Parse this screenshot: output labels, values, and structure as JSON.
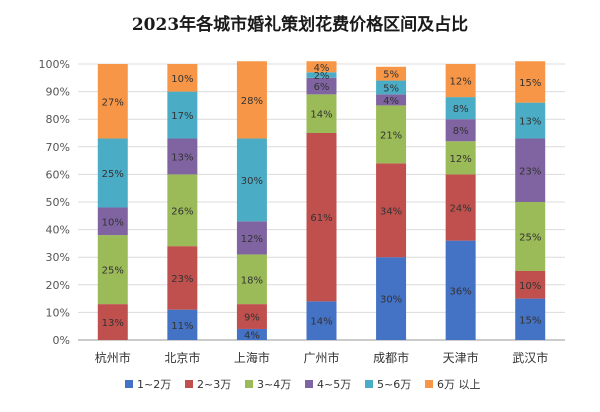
{
  "chart_data": {
    "type": "bar",
    "stacked": true,
    "title": "2023年各城市婚礼策划花费价格区间及占比",
    "xlabel": "",
    "ylabel": "",
    "ylim": [
      0,
      100
    ],
    "y_ticks": [
      "0%",
      "10%",
      "20%",
      "30%",
      "40%",
      "50%",
      "60%",
      "70%",
      "80%",
      "90%",
      "100%"
    ],
    "categories": [
      "杭州市",
      "北京市",
      "上海市",
      "广州市",
      "成都市",
      "天津市",
      "武汉市"
    ],
    "series": [
      {
        "name": "1~2万",
        "color": "#4472c4",
        "values": [
          0,
          11,
          4,
          14,
          30,
          36,
          15
        ],
        "labels": [
          "",
          "11%",
          "4%",
          "14%",
          "30%",
          "36%",
          "15%"
        ]
      },
      {
        "name": "2~3万",
        "color": "#c0504d",
        "values": [
          13,
          23,
          9,
          61,
          34,
          24,
          10
        ],
        "labels": [
          "13%",
          "23%",
          "9%",
          "61%",
          "34%",
          "24%",
          "10%"
        ]
      },
      {
        "name": "3~4万",
        "color": "#9bbb59",
        "values": [
          25,
          26,
          18,
          14,
          21,
          12,
          25
        ],
        "labels": [
          "25%",
          "26%",
          "18%",
          "14%",
          "21%",
          "12%",
          "25%"
        ]
      },
      {
        "name": "4~5万",
        "color": "#8064a2",
        "values": [
          10,
          13,
          12,
          6,
          4,
          8,
          23
        ],
        "labels": [
          "10%",
          "13%",
          "12%",
          "6%",
          "4%",
          "8%",
          "23%"
        ]
      },
      {
        "name": "5~6万",
        "color": "#4bacc6",
        "values": [
          25,
          17,
          30,
          2,
          5,
          8,
          13
        ],
        "labels": [
          "25%",
          "17%",
          "30%",
          "2%",
          "5%",
          "8%",
          "13%"
        ]
      },
      {
        "name": "6万 以上",
        "color": "#f79646",
        "values": [
          27,
          10,
          28,
          4,
          5,
          12,
          15
        ],
        "labels": [
          "27%",
          "10%",
          "28%",
          "4%",
          "5%",
          "12%",
          "15%"
        ]
      }
    ],
    "legend_position": "bottom",
    "grid": true
  }
}
